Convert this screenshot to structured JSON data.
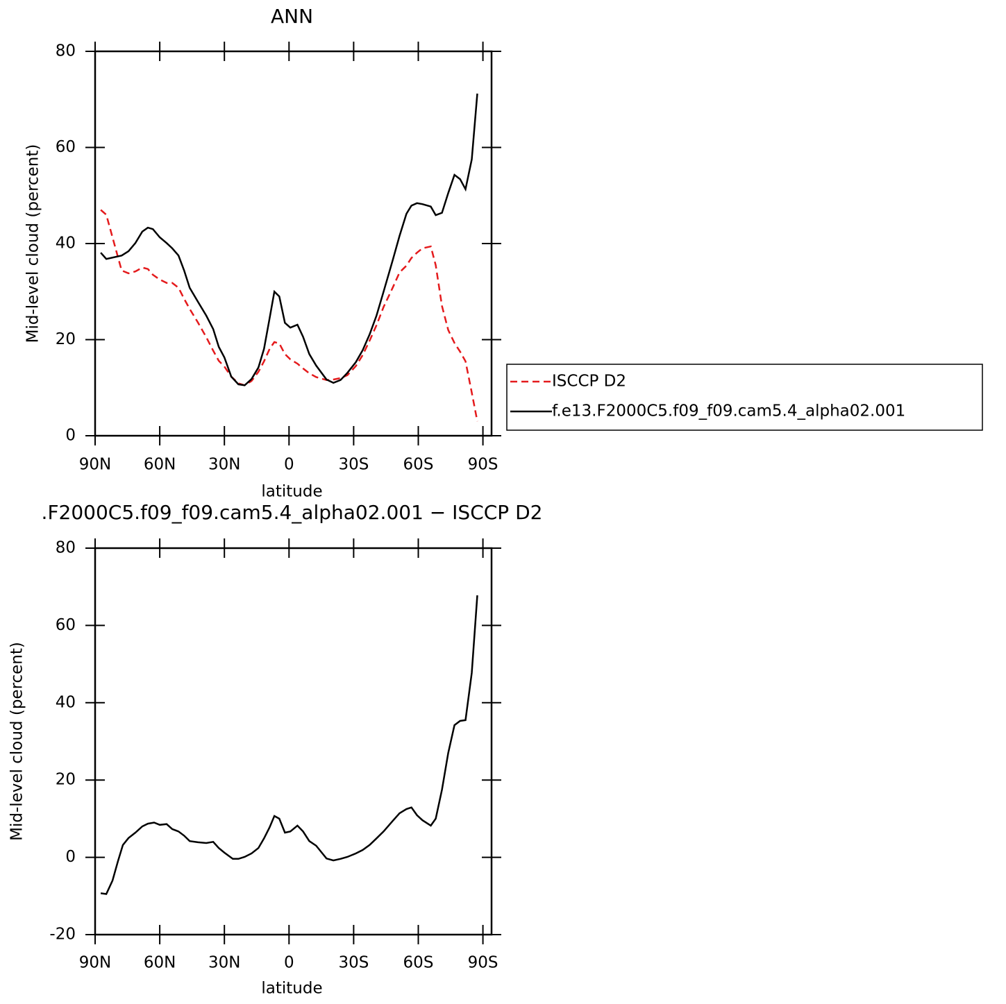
{
  "chart_data": [
    {
      "type": "line",
      "title": "ANN",
      "xlabel": "latitude",
      "ylabel": "Mid-level cloud (percent)",
      "x": [
        87.4,
        84.8,
        77.7,
        74.5,
        71.3,
        68.1,
        65.5,
        63.2,
        60,
        56.8,
        54.2,
        51.3,
        48.7,
        46.1,
        42.3,
        38.4,
        35.2,
        32.6,
        30,
        26.8,
        23.5,
        20.6,
        17.4,
        14.2,
        11.6,
        9,
        6.8,
        4.5,
        1.9,
        -0.6,
        -3.9,
        -6.5,
        -9.4,
        -12.6,
        -17.4,
        -20.6,
        -23.9,
        -27.1,
        -31,
        -34.2,
        -37.4,
        -40.6,
        -43.9,
        -48.1,
        -51.3,
        -54.5,
        -56.8,
        -59.4,
        -61.9,
        -65.8,
        -68.1,
        -71,
        -73.9,
        -76.8,
        -79.4,
        -81.9,
        -84.8,
        -87.4
      ],
      "series": [
        {
          "name": "ISCCP D2",
          "color": "#e41a1c",
          "dash": true,
          "values": [
            47,
            46,
            34.4,
            33.8,
            34.2,
            35,
            34.7,
            33.5,
            32.5,
            31.8,
            31.8,
            30.8,
            28.5,
            26.4,
            23.6,
            20.5,
            17.7,
            15.6,
            14.4,
            12.3,
            10.9,
            10.5,
            11.4,
            13.3,
            15.5,
            18.1,
            19.5,
            19.2,
            17,
            15.9,
            15,
            14,
            13,
            12.2,
            11.6,
            11.7,
            12,
            12.6,
            14.5,
            16.8,
            19.8,
            23,
            26.8,
            30.8,
            34,
            35.4,
            37,
            38.1,
            39,
            39.4,
            35.5,
            27,
            22,
            19.3,
            17.5,
            15.5,
            9,
            3
          ]
        },
        {
          "name": "f.e13.F2000C5.f09_f09.cam5.4_alpha02.001",
          "color": "#000000",
          "dash": false,
          "values": [
            38.1,
            36.8,
            37.5,
            38.4,
            40.1,
            42.5,
            43.3,
            43,
            41.3,
            40.1,
            39,
            37.5,
            34.4,
            30.8,
            27.9,
            25,
            22.2,
            18.5,
            16.3,
            12.3,
            10.7,
            10.5,
            11.8,
            14.2,
            18.1,
            24.5,
            30,
            29,
            23.5,
            22.5,
            23.1,
            20.6,
            17,
            14.6,
            11.7,
            11,
            11.6,
            13.1,
            15.3,
            17.8,
            21.1,
            25,
            30,
            36.5,
            41.6,
            46.2,
            47.9,
            48.4,
            48.2,
            47.7,
            45.9,
            46.4,
            50.5,
            54.3,
            53.4,
            51.3,
            57.5,
            71.2
          ]
        }
      ],
      "xlim": [
        90,
        -94
      ],
      "ylim": [
        0,
        80
      ],
      "xticks": [
        {
          "value": 90,
          "label": "90N"
        },
        {
          "value": 60,
          "label": "60N"
        },
        {
          "value": 30,
          "label": "30N"
        },
        0,
        {
          "value": -30,
          "label": "30S"
        },
        {
          "value": -60,
          "label": "60S"
        },
        {
          "value": -90,
          "label": "90S"
        }
      ],
      "yticks": [
        0,
        20,
        40,
        60,
        80
      ],
      "legend": "right"
    },
    {
      "type": "line",
      "title": ".F2000C5.f09_f09.cam5.4_alpha02.001 − ISCCP D2",
      "xlabel": "latitude",
      "ylabel": "Mid-level cloud (percent)",
      "x": [
        87.4,
        84.8,
        81.9,
        79.4,
        77.1,
        74.5,
        71.3,
        68.1,
        65.5,
        62.6,
        60,
        56.8,
        54.2,
        51.3,
        48.7,
        46.1,
        42.3,
        38.4,
        35.2,
        32.6,
        30,
        26.1,
        23.5,
        20.6,
        17.4,
        14.2,
        11.6,
        9,
        6.8,
        4.5,
        1.9,
        -0.6,
        -3.9,
        -6.5,
        -9.4,
        -12.6,
        -17.4,
        -20.6,
        -23.9,
        -27.1,
        -31,
        -34.2,
        -37.4,
        -40.6,
        -43.9,
        -48.1,
        -51.3,
        -54.5,
        -56.8,
        -59.4,
        -61.9,
        -65.8,
        -68.1,
        -71,
        -73.9,
        -76.8,
        -79.4,
        -81.9,
        -84.8,
        -87.4
      ],
      "series": [
        {
          "color": "#000000",
          "dash": false,
          "values": [
            -9.3,
            -9.5,
            -6,
            -1,
            3.2,
            5,
            6.4,
            8,
            8.7,
            9,
            8.4,
            8.6,
            7.3,
            6.7,
            5.6,
            4.2,
            3.9,
            3.7,
            4,
            2.4,
            1.2,
            -0.4,
            -0.4,
            0.1,
            1,
            2.4,
            4.9,
            7.8,
            10.7,
            10,
            6.4,
            6.7,
            8.2,
            6.7,
            4.2,
            3,
            -0.3,
            -0.8,
            -0.4,
            0.1,
            1,
            1.9,
            3.2,
            4.9,
            6.7,
            9.4,
            11.4,
            12.5,
            12.9,
            10.9,
            9.6,
            8.2,
            10,
            17.5,
            27,
            34.2,
            35.3,
            35.5,
            47.7,
            67.8
          ]
        }
      ],
      "xlim": [
        90,
        -94
      ],
      "ylim": [
        -20,
        80
      ],
      "xticks": [
        {
          "value": 90,
          "label": "90N"
        },
        {
          "value": 60,
          "label": "60N"
        },
        {
          "value": 30,
          "label": "30N"
        },
        0,
        {
          "value": -30,
          "label": "30S"
        },
        {
          "value": -60,
          "label": "60S"
        },
        {
          "value": -90,
          "label": "90S"
        }
      ],
      "yticks": [
        -20,
        0,
        20,
        40,
        60,
        80
      ]
    }
  ]
}
